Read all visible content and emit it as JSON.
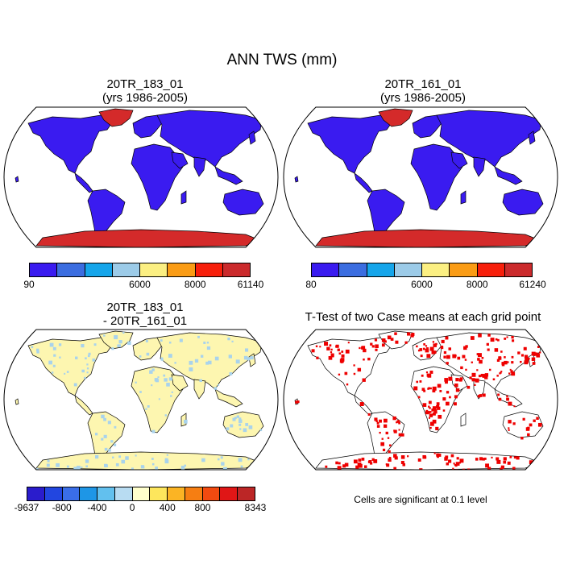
{
  "title": "ANN TWS (mm)",
  "panels": [
    {
      "id": "p1",
      "title_line1": "20TR_183_01",
      "title_line2": "(yrs 1986-2005)",
      "fill": "#3a1bf0",
      "ice": "#d42a2a",
      "colorbar": {
        "colors": [
          "#3a1bf0",
          "#3b6de0",
          "#15a5ea",
          "#9ccbe8",
          "#fbef82",
          "#fa9c15",
          "#f71f0b",
          "#cb2a2c"
        ],
        "labels": [
          "90",
          "6000",
          "8000",
          "61140"
        ]
      }
    },
    {
      "id": "p2",
      "title_line1": "20TR_161_01",
      "title_line2": "(yrs 1986-2005)",
      "fill": "#3a1bf0",
      "ice": "#d42a2a",
      "colorbar": {
        "colors": [
          "#3a1bf0",
          "#3b6de0",
          "#15a5ea",
          "#9ccbe8",
          "#fbef82",
          "#fa9c15",
          "#f71f0b",
          "#cb2a2c"
        ],
        "labels": [
          "80",
          "6000",
          "8000",
          "61240"
        ]
      }
    },
    {
      "id": "p3",
      "title_line1": "20TR_183_01",
      "title_line2": "- 20TR_161_01",
      "fill": "#fdf6b0",
      "ice": "#fdf6b0",
      "colorbar": {
        "colors": [
          "#2a1ccc",
          "#2246e0",
          "#3a6ee8",
          "#1e96e6",
          "#62c0ee",
          "#b8dcf2",
          "#ffffcc",
          "#fde65c",
          "#fbb424",
          "#f67e12",
          "#f24a10",
          "#e01616",
          "#bc2626"
        ],
        "labels": [
          "-9637",
          "-800",
          "-400",
          "0",
          "400",
          "800",
          "8343"
        ]
      }
    },
    {
      "id": "p4",
      "title_line1": "T-Test of two Case means at each grid point",
      "title_line2": "",
      "fill": "#ffffff",
      "ice": "#ffffff",
      "note": "Cells are significant at 0.1 level"
    }
  ],
  "colors": {
    "significant": "#ee0000",
    "land_outline": "#000000",
    "wet_speckle": "#a9d3ec"
  }
}
